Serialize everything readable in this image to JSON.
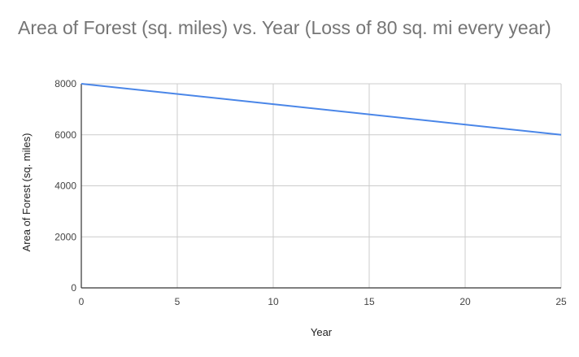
{
  "chart_data": {
    "type": "line",
    "title": "Area of Forest (sq. miles) vs. Year (Loss of 80 sq. mi every year)",
    "xlabel": "Year",
    "ylabel": "Area of Forest (sq. miles)",
    "xlim": [
      0,
      25
    ],
    "ylim": [
      0,
      8000
    ],
    "xticks": [
      0,
      5,
      10,
      15,
      20,
      25
    ],
    "yticks": [
      0,
      2000,
      4000,
      6000,
      8000
    ],
    "grid": true,
    "legend": "none",
    "series": [
      {
        "color": "#4a86e8",
        "x": [
          0,
          25
        ],
        "y": [
          8000,
          6000
        ]
      }
    ]
  },
  "colors": {
    "line": "#4a86e8",
    "grid": "#cccccc",
    "axis": "#333333",
    "title": "#757575"
  }
}
